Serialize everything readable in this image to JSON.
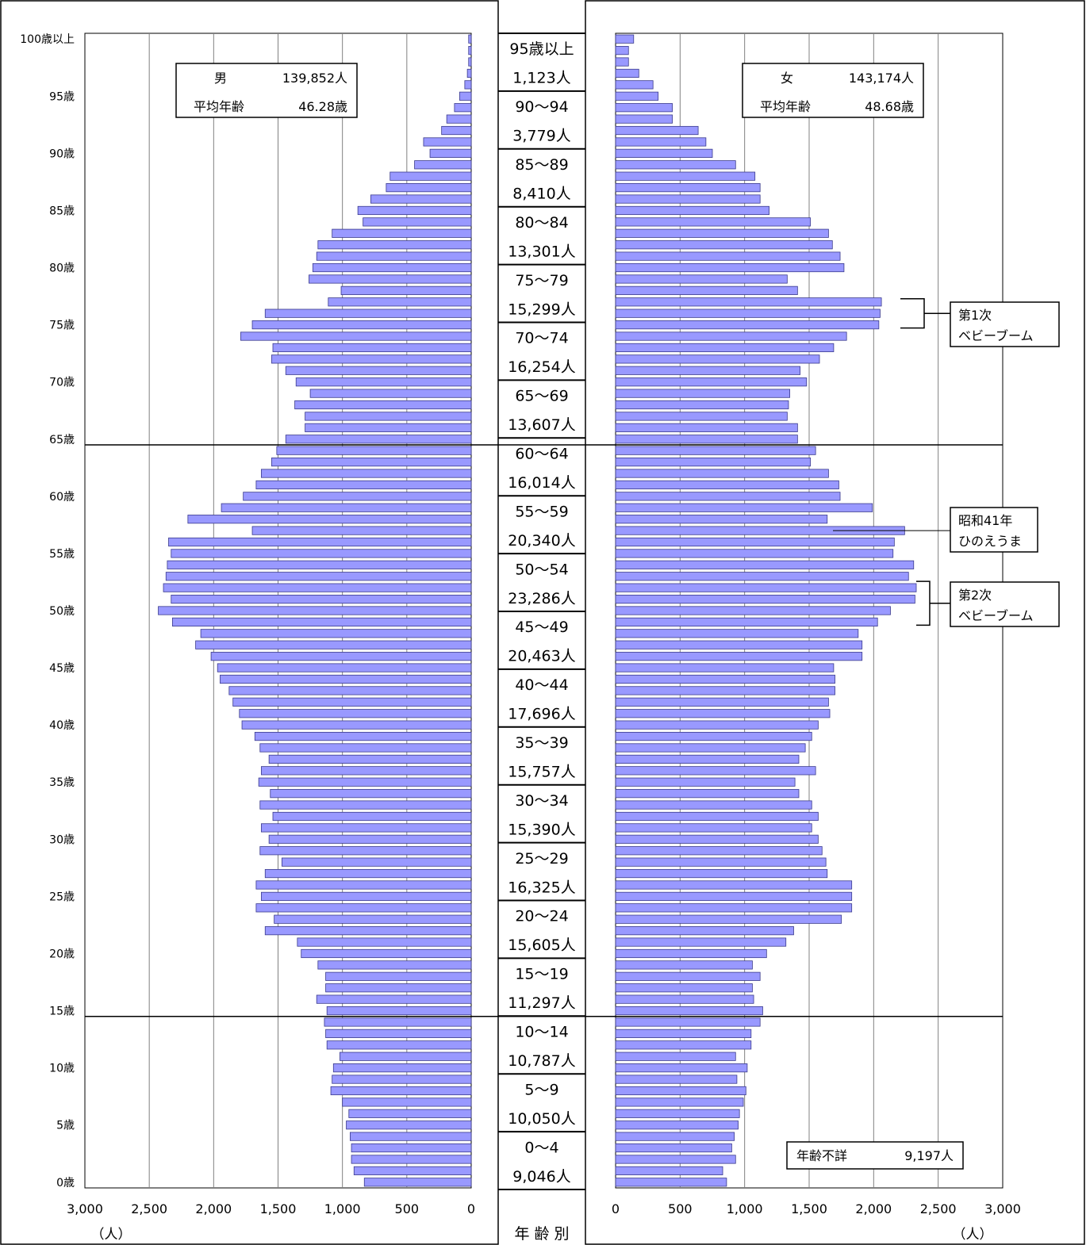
{
  "chart_data": {
    "type": "bar",
    "subtype": "population-pyramid",
    "unit_label": "（人）",
    "center_title": "年 齢 別",
    "x_ticks": [
      "3,000",
      "2,500",
      "2,000",
      "1,500",
      "1,000",
      "500",
      "0"
    ],
    "x_ticks_right": [
      "0",
      "500",
      "1,000",
      "1,500",
      "2,000",
      "2,500",
      "3,000"
    ],
    "xlim": [
      0,
      3000
    ],
    "age_labels": [
      {
        "age": 100,
        "label": "100歳以上"
      },
      {
        "age": 95,
        "label": "95歳"
      },
      {
        "age": 90,
        "label": "90歳"
      },
      {
        "age": 85,
        "label": "85歳"
      },
      {
        "age": 80,
        "label": "80歳"
      },
      {
        "age": 75,
        "label": "75歳"
      },
      {
        "age": 70,
        "label": "70歳"
      },
      {
        "age": 65,
        "label": "65歳"
      },
      {
        "age": 60,
        "label": "60歳"
      },
      {
        "age": 55,
        "label": "55歳"
      },
      {
        "age": 50,
        "label": "50歳"
      },
      {
        "age": 45,
        "label": "45歳"
      },
      {
        "age": 40,
        "label": "40歳"
      },
      {
        "age": 35,
        "label": "35歳"
      },
      {
        "age": 30,
        "label": "30歳"
      },
      {
        "age": 25,
        "label": "25歳"
      },
      {
        "age": 20,
        "label": "20歳"
      },
      {
        "age": 15,
        "label": "15歳"
      },
      {
        "age": 10,
        "label": "10歳"
      },
      {
        "age": 5,
        "label": "5歳"
      },
      {
        "age": 0,
        "label": "0歳"
      }
    ],
    "divider_ages": [
      65,
      15
    ],
    "male": {
      "label": "男",
      "total": "139,852人",
      "avg_label": "平均年齢",
      "avg_value": "46.28歳",
      "values": [
        830,
        910,
        930,
        930,
        940,
        970,
        950,
        1000,
        1090,
        1080,
        1070,
        1020,
        1120,
        1130,
        1140,
        1120,
        1200,
        1130,
        1130,
        1190,
        1320,
        1350,
        1600,
        1530,
        1670,
        1630,
        1670,
        1600,
        1470,
        1640,
        1570,
        1630,
        1540,
        1640,
        1560,
        1650,
        1630,
        1570,
        1640,
        1680,
        1780,
        1800,
        1850,
        1880,
        1950,
        1970,
        2020,
        2140,
        2100,
        2320,
        2430,
        2330,
        2390,
        2370,
        2360,
        2330,
        2350,
        1700,
        2200,
        1940,
        1770,
        1670,
        1630,
        1550,
        1510,
        1440,
        1290,
        1290,
        1370,
        1250,
        1360,
        1440,
        1550,
        1540,
        1790,
        1700,
        1600,
        1110,
        1010,
        1260,
        1230,
        1200,
        1190,
        1080,
        840,
        880,
        780,
        660,
        630,
        440,
        320,
        370,
        230,
        190,
        130,
        90,
        50,
        30,
        20,
        20,
        20
      ]
    },
    "female": {
      "label": "女",
      "total": "143,174人",
      "avg_label": "平均年齢",
      "avg_value": "48.68歳",
      "values": [
        860,
        830,
        930,
        900,
        920,
        950,
        960,
        990,
        1010,
        940,
        1020,
        930,
        1050,
        1050,
        1120,
        1140,
        1070,
        1060,
        1120,
        1060,
        1170,
        1320,
        1380,
        1750,
        1830,
        1830,
        1830,
        1640,
        1630,
        1600,
        1570,
        1520,
        1570,
        1520,
        1420,
        1390,
        1550,
        1420,
        1470,
        1520,
        1570,
        1660,
        1650,
        1700,
        1700,
        1690,
        1910,
        1910,
        1880,
        2030,
        2130,
        2320,
        2330,
        2270,
        2310,
        2150,
        2160,
        2240,
        1640,
        1990,
        1740,
        1730,
        1650,
        1510,
        1550,
        1410,
        1410,
        1330,
        1340,
        1350,
        1480,
        1430,
        1580,
        1690,
        1790,
        2040,
        2050,
        2060,
        1410,
        1330,
        1770,
        1740,
        1680,
        1650,
        1510,
        1190,
        1120,
        1120,
        1080,
        930,
        750,
        700,
        640,
        440,
        440,
        330,
        290,
        180,
        100,
        100,
        140
      ]
    },
    "age_groups": [
      {
        "range": "95歳以上",
        "total": "1,123人"
      },
      {
        "range": "90～94",
        "total": "3,779人"
      },
      {
        "range": "85～89",
        "total": "8,410人"
      },
      {
        "range": "80～84",
        "total": "13,301人"
      },
      {
        "range": "75～79",
        "total": "15,299人"
      },
      {
        "range": "70～74",
        "total": "16,254人"
      },
      {
        "range": "65～69",
        "total": "13,607人"
      },
      {
        "range": "60～64",
        "total": "16,014人"
      },
      {
        "range": "55～59",
        "total": "20,340人"
      },
      {
        "range": "50～54",
        "total": "23,286人"
      },
      {
        "range": "45～49",
        "total": "20,463人"
      },
      {
        "range": "40～44",
        "total": "17,696人"
      },
      {
        "range": "35～39",
        "total": "15,757人"
      },
      {
        "range": "30～34",
        "total": "15,390人"
      },
      {
        "range": "25～29",
        "total": "16,325人"
      },
      {
        "range": "20～24",
        "total": "15,605人"
      },
      {
        "range": "15～19",
        "total": "11,297人"
      },
      {
        "range": "10～14",
        "total": "10,787人"
      },
      {
        "range": "5～9",
        "total": "10,050人"
      },
      {
        "range": "0～4",
        "total": "9,046人"
      }
    ],
    "annotations": [
      {
        "lines": [
          "第1次",
          "ベビーブーム"
        ],
        "ages": [
          75,
          77
        ]
      },
      {
        "lines": [
          "昭和41年",
          "ひのえうま"
        ],
        "ages": [
          57
        ]
      },
      {
        "lines": [
          "第2次",
          "ベビーブーム"
        ],
        "ages": [
          49,
          52
        ]
      }
    ],
    "unknown_age": {
      "label": "年齢不詳",
      "value": "9,197人"
    },
    "bar_color": "#9999ff",
    "bar_border": "#3a3a8c"
  }
}
